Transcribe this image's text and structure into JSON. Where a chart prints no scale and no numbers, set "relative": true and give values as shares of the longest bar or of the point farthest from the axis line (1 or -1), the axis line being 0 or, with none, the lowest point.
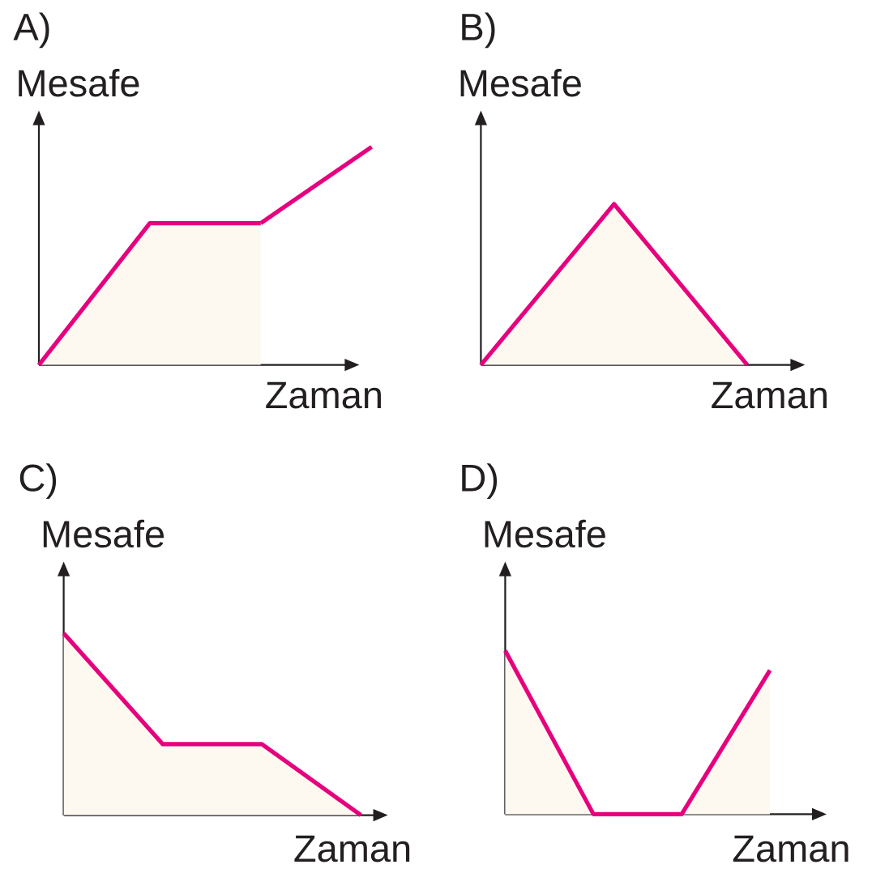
{
  "chart_data": [
    {
      "type": "area",
      "title": "A)",
      "xlabel": "Zaman",
      "ylabel": "Mesafe",
      "relative": true,
      "categories": [
        null,
        null,
        null,
        null
      ],
      "series": [
        {
          "type": "area",
          "color": "#e6007e",
          "values": [
            0,
            0.65,
            0.65,
            null
          ]
        },
        {
          "type": "line",
          "color": "#e6007e",
          "values": [
            null,
            null,
            0.65,
            1
          ]
        }
      ]
    },
    {
      "type": "area",
      "title": "B)",
      "xlabel": "Zaman",
      "ylabel": "Mesafe",
      "relative": true,
      "categories": [
        null,
        null,
        null
      ],
      "series": [
        {
          "color": "#e6007e",
          "values": [
            0,
            1,
            0
          ]
        }
      ]
    },
    {
      "type": "area",
      "title": "C)",
      "xlabel": "Zaman",
      "ylabel": "Mesafe",
      "relative": true,
      "categories": [
        null,
        null,
        null,
        null
      ],
      "series": [
        {
          "color": "#e6007e",
          "values": [
            1,
            0.39,
            0.39,
            0
          ]
        }
      ]
    },
    {
      "type": "area",
      "title": "D)",
      "xlabel": "Zaman",
      "ylabel": "Mesafe",
      "relative": true,
      "categories": [
        null,
        null,
        null,
        null
      ],
      "series": [
        {
          "color": "#e6007e",
          "values": [
            1,
            0,
            0,
            0.88
          ]
        }
      ]
    }
  ]
}
